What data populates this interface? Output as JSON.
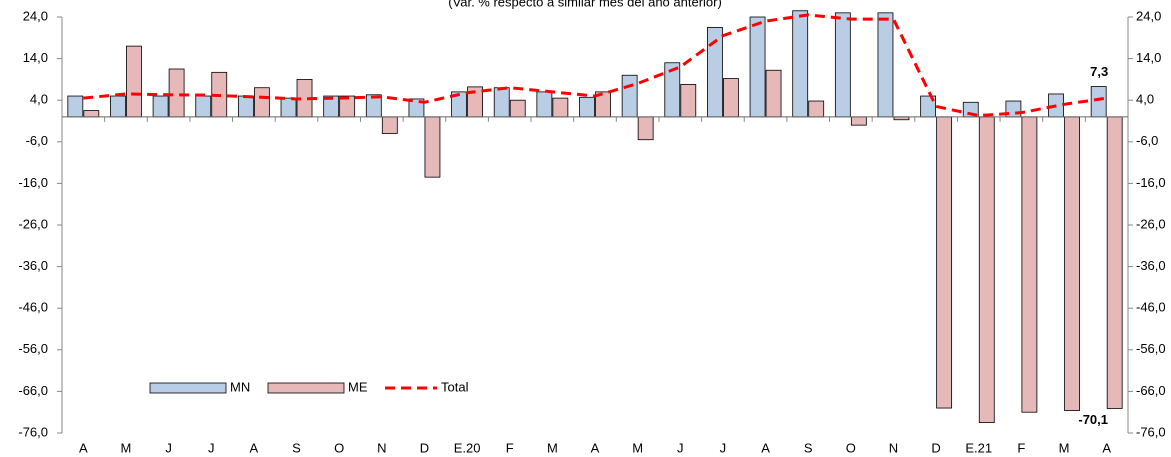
{
  "chart_data": {
    "type": "bar",
    "subtitle": "(Var. % respecto a similar mes del año anterior)",
    "categories": [
      "A",
      "M",
      "J",
      "J",
      "A",
      "S",
      "O",
      "N",
      "D",
      "E.20",
      "F",
      "M",
      "A",
      "M",
      "J",
      "J",
      "A",
      "S",
      "O",
      "N",
      "D",
      "E.21",
      "F",
      "M",
      "A"
    ],
    "series": [
      {
        "name": "MN",
        "color": "#b9cde5",
        "type": "bar",
        "values": [
          5.0,
          5.0,
          5.0,
          5.0,
          5.0,
          4.5,
          5.0,
          5.3,
          4.3,
          6.0,
          7.0,
          6.0,
          4.7,
          10.0,
          13.0,
          21.5,
          24.0,
          25.5,
          25.0,
          25.0,
          5.0,
          3.5,
          3.8,
          5.5,
          7.3
        ],
        "value_labels": [
          null,
          null,
          null,
          null,
          null,
          null,
          null,
          null,
          null,
          null,
          null,
          null,
          null,
          null,
          null,
          null,
          null,
          null,
          null,
          null,
          null,
          null,
          null,
          null,
          "7,3"
        ]
      },
      {
        "name": "ME",
        "color": "#e6b9b8",
        "type": "bar",
        "values": [
          1.5,
          17.0,
          11.5,
          10.7,
          7.0,
          9.0,
          5.0,
          -4.0,
          -14.5,
          7.2,
          4.0,
          4.5,
          6.0,
          -5.5,
          7.8,
          9.2,
          11.2,
          3.8,
          -2.0,
          -0.7,
          -70.0,
          -73.5,
          -71.0,
          -70.6,
          -70.1
        ],
        "value_labels": [
          null,
          null,
          null,
          null,
          null,
          null,
          null,
          null,
          null,
          null,
          null,
          null,
          null,
          null,
          null,
          null,
          null,
          null,
          null,
          null,
          null,
          null,
          null,
          null,
          "-70,1"
        ]
      },
      {
        "name": "Total",
        "color": "#ff0000",
        "type": "line",
        "values": [
          4.5,
          5.5,
          5.3,
          5.2,
          4.8,
          4.3,
          4.5,
          4.8,
          3.5,
          5.8,
          7.0,
          6.0,
          5.0,
          8.0,
          12.0,
          19.5,
          23.0,
          24.5,
          23.5,
          23.5,
          2.5,
          0.3,
          1.0,
          3.0,
          4.5
        ]
      }
    ],
    "ylim": [
      -76,
      24
    ],
    "yticks": [
      {
        "value": 24,
        "label": "24,0"
      },
      {
        "value": 14,
        "label": "14,0"
      },
      {
        "value": 4,
        "label": "4,0"
      },
      {
        "value": -6,
        "label": "-6,0"
      },
      {
        "value": -16,
        "label": "-16,0"
      },
      {
        "value": -26,
        "label": "-26,0"
      },
      {
        "value": -36,
        "label": "-36,0"
      },
      {
        "value": -46,
        "label": "-46,0"
      },
      {
        "value": -56,
        "label": "-56,0"
      },
      {
        "value": -66,
        "label": "-66,0"
      },
      {
        "value": -76,
        "label": "-76,0"
      }
    ],
    "legend": "lower-left"
  }
}
